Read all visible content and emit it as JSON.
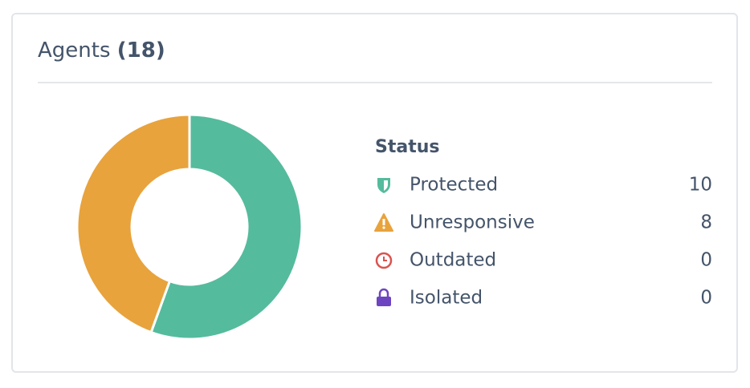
{
  "chart_data": {
    "type": "donut",
    "title": "Agents",
    "title_count": "(18)",
    "legend_title": "Status",
    "categories": [
      "Protected",
      "Unresponsive",
      "Outdated",
      "Isolated"
    ],
    "values": [
      10,
      8,
      0,
      0
    ],
    "colors": [
      "#55bb9d",
      "#e8a33d",
      "#d9534f",
      "#6e45c0"
    ]
  }
}
